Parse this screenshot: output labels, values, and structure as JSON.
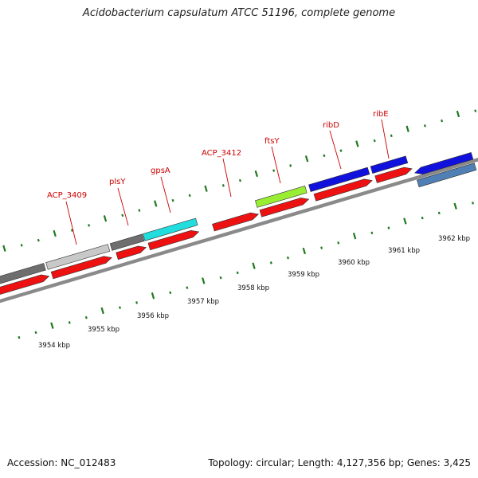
{
  "title": "Acidobacterium capsulatum ATCC 51196, complete genome",
  "footer": {
    "accession": "Accession: NC_012483",
    "topology": "Topology: circular; Length: 4,127,356 bp; Genes: 3,425"
  },
  "colors": {
    "backbone": "#8a8a8a",
    "tick": "#1e7a1e",
    "label_red": "#cc0000",
    "cds_red": "#ee1111",
    "gray_dark": "#6e6e6e",
    "gray_light": "#c8c8c8",
    "cyan": "#22dddd",
    "lime": "#99ee33",
    "blue": "#1111dd",
    "steel": "#4f7fb5"
  },
  "scale_labels": [
    "3954 kbp",
    "3955 kbp",
    "3956 kbp",
    "3957 kbp",
    "3958 kbp",
    "3959 kbp",
    "3960 kbp",
    "3961 kbp",
    "3962 kbp"
  ],
  "gene_labels": [
    "ACP_3409",
    "plsY",
    "gpsA",
    "ACP_3412",
    "ftsY",
    "ribD",
    "ribE"
  ]
}
